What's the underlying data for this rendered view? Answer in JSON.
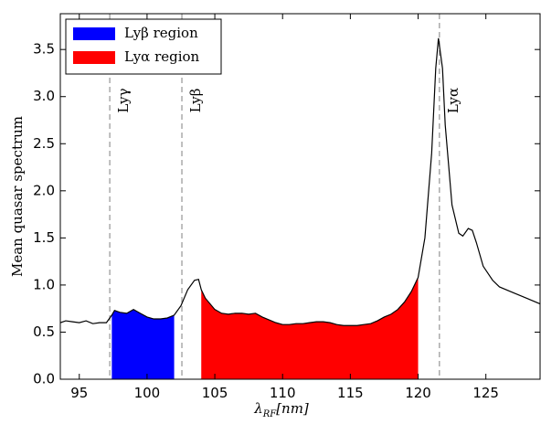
{
  "chart_data": {
    "type": "line",
    "y_label": "Mean quasar spectrum",
    "x_label": {
      "main": "λ",
      "sub": "RF",
      "rest": "[nm]"
    },
    "xlim": [
      93.6,
      129
    ],
    "ylim": [
      0,
      3.88
    ],
    "xticks": [
      95,
      100,
      105,
      110,
      115,
      120,
      125
    ],
    "yticks": [
      {
        "value": 0,
        "label": "0.0"
      },
      0.5,
      {
        "value": 1,
        "label": "1.0"
      },
      1.5,
      {
        "value": 2,
        "label": "2.0"
      },
      2.5,
      {
        "value": 3,
        "label": "3.0"
      },
      3.5
    ],
    "legend": "upper left",
    "series": [
      {
        "color": "#000000",
        "x": [
          93.6,
          94,
          94.5,
          95,
          95.5,
          96,
          96.5,
          97,
          97.4,
          97.6,
          98,
          98.5,
          99,
          99.5,
          100,
          100.5,
          101,
          101.5,
          102,
          102.5,
          103,
          103.5,
          103.8,
          104,
          104.3,
          105,
          105.5,
          106,
          106.5,
          107,
          107.5,
          108,
          108.5,
          109,
          109.5,
          110,
          110.5,
          111,
          111.5,
          112,
          112.5,
          113,
          113.5,
          114,
          114.5,
          115,
          115.5,
          116,
          116.5,
          117,
          117.5,
          118,
          118.5,
          119,
          119.5,
          120,
          120.5,
          121,
          121.3,
          121.5,
          121.8,
          122,
          122.5,
          123,
          123.3,
          123.7,
          124,
          124.3,
          124.8,
          125.5,
          126,
          127,
          128,
          129
        ],
        "values": [
          0.6,
          0.62,
          0.61,
          0.6,
          0.62,
          0.59,
          0.6,
          0.6,
          0.68,
          0.73,
          0.71,
          0.7,
          0.74,
          0.7,
          0.66,
          0.64,
          0.64,
          0.65,
          0.68,
          0.78,
          0.95,
          1.05,
          1.06,
          0.95,
          0.86,
          0.74,
          0.7,
          0.69,
          0.7,
          0.7,
          0.69,
          0.7,
          0.66,
          0.63,
          0.6,
          0.58,
          0.58,
          0.59,
          0.59,
          0.6,
          0.61,
          0.61,
          0.6,
          0.58,
          0.57,
          0.57,
          0.57,
          0.58,
          0.59,
          0.62,
          0.66,
          0.69,
          0.74,
          0.82,
          0.93,
          1.08,
          1.5,
          2.4,
          3.3,
          3.62,
          3.3,
          2.7,
          1.85,
          1.55,
          1.52,
          1.6,
          1.58,
          1.45,
          1.2,
          1.05,
          0.98,
          0.92,
          0.86,
          0.8
        ]
      }
    ],
    "regions": [
      {
        "name": "Lyβ region",
        "color": "#0000ff",
        "xrange": [
          97.4,
          102
        ]
      },
      {
        "name": "Lyα region",
        "color": "#ff0000",
        "xrange": [
          104,
          120
        ]
      }
    ],
    "lines": [
      {
        "x": 97.25,
        "label": "Lyγ"
      },
      {
        "x": 102.57,
        "label": "Lyβ"
      },
      {
        "x": 121.57,
        "label": "Lyα"
      }
    ]
  }
}
